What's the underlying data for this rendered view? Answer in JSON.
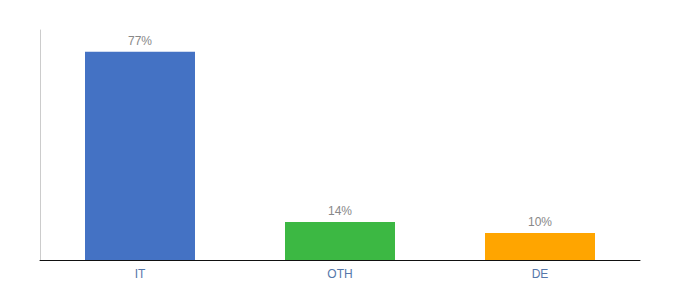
{
  "chart_data": {
    "type": "bar",
    "categories": [
      "IT",
      "OTH",
      "DE"
    ],
    "values": [
      77,
      14,
      10
    ],
    "value_labels": [
      "77%",
      "14%",
      "10%"
    ],
    "colors": [
      "#4472C4",
      "#3CB843",
      "#FFA500"
    ],
    "ylim": [
      0,
      85
    ],
    "grid": false,
    "data_labels": true,
    "tick_labels": "x"
  }
}
